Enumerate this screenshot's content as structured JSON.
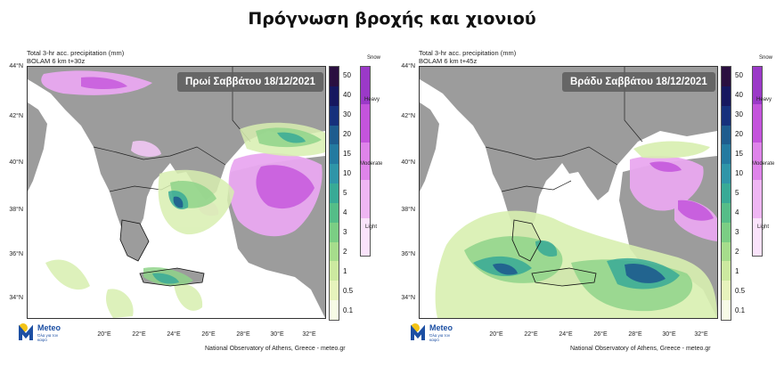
{
  "page_title": "Πρόγνωση βροχής και χιονιού",
  "colors": {
    "land": "#9c9c9c",
    "sea": "#ffffff",
    "badge_bg": "#5f5f5f",
    "brand_blue": "#1c4fa3",
    "brand_yellow": "#f3c316"
  },
  "legend": {
    "levels": [
      "50",
      "40",
      "30",
      "20",
      "15",
      "10",
      "5",
      "4",
      "3",
      "2",
      "1",
      "0.5",
      "0.1"
    ],
    "rain_colors": [
      "#2a0f40",
      "#16175f",
      "#16307c",
      "#1e5c8e",
      "#247aa0",
      "#2f95a8",
      "#38aa96",
      "#55bd88",
      "#7bce84",
      "#a6dd8c",
      "#cce9a0",
      "#e6f3bc",
      "#f7fbe6"
    ],
    "snow_title": "Snow",
    "snow_colors": [
      "#9b39c8",
      "#c454dc",
      "#df84ea",
      "#efb6f3",
      "#fae3fb"
    ],
    "snow_labels": [
      "Heavy",
      "Moderate",
      "Light"
    ]
  },
  "latitudes": [
    "44°N",
    "42°N",
    "40°N",
    "38°N",
    "36°N",
    "34°N"
  ],
  "longitudes": [
    "20°E",
    "22°E",
    "24°E",
    "26°E",
    "28°E",
    "30°E",
    "32°E"
  ],
  "panels": [
    {
      "header_line1": "Total 3-hr acc. precipitation (mm)",
      "header_line2": "BOLAM 6 km t+30z",
      "badge": "Πρωί Σαββάτου 18/12/2021"
    },
    {
      "header_line1": "Total 3-hr acc. precipitation (mm)",
      "header_line2": "BOLAM 6 km t+45z",
      "badge": "Βράδυ Σαββάτου 18/12/2021"
    }
  ],
  "logo": {
    "name": "Meteo",
    "tagline": "Όλα για τον καιρό"
  },
  "credit": "National Observatory of Athens, Greece - meteo.gr"
}
